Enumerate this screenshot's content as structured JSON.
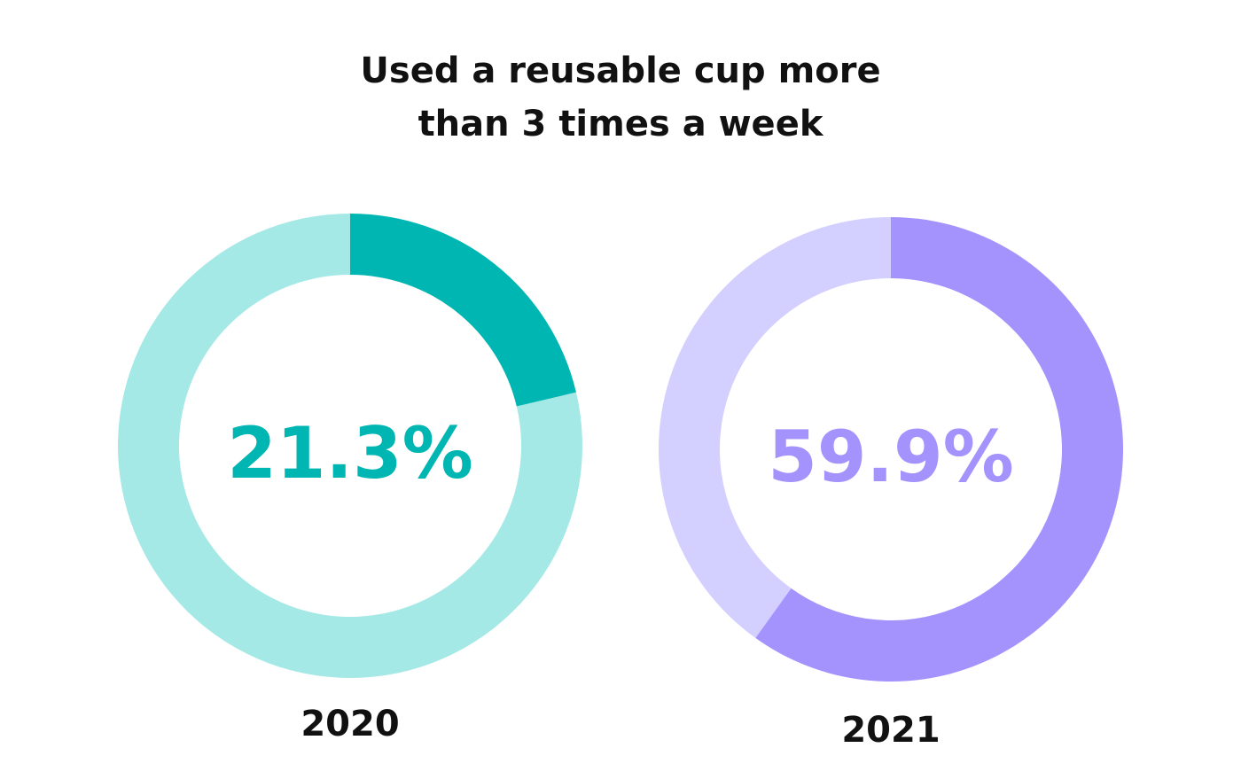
{
  "chart_data": {
    "type": "pie",
    "title_lines": [
      "Used a reusable cup more",
      "than 3 times a week"
    ],
    "charts": [
      {
        "year": "2020",
        "value_label": "21.3%",
        "value": 21.3,
        "remainder": 78.7,
        "colors": {
          "value": "#00b6b2",
          "remainder": "#a5e9e6",
          "text": "#00b6b2"
        }
      },
      {
        "year": "2021",
        "value_label": "59.9%",
        "value": 59.9,
        "remainder": 40.1,
        "colors": {
          "value": "#a593fd",
          "remainder": "#d3cffe",
          "text": "#a593fd"
        }
      }
    ]
  }
}
